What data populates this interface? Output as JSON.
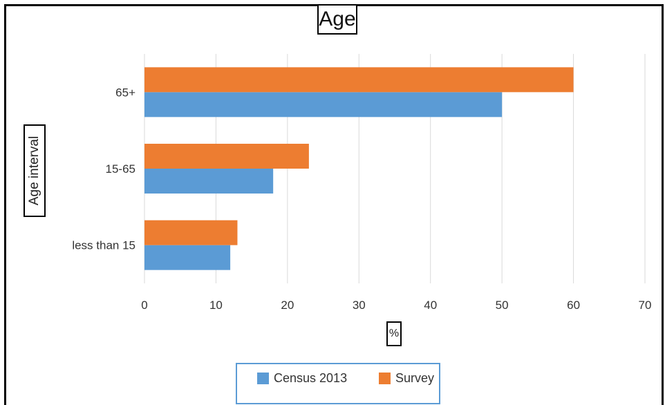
{
  "chart_data": {
    "type": "bar",
    "orientation": "horizontal",
    "title": "Age",
    "xlabel": "%",
    "ylabel": "Age interval",
    "categories": [
      "less than 15",
      "15-65",
      "65+"
    ],
    "series": [
      {
        "name": "Census 2013",
        "color": "#5b9bd5",
        "values": [
          12,
          18,
          50
        ]
      },
      {
        "name": "Survey",
        "color": "#ed7d31",
        "values": [
          13,
          23,
          60
        ]
      }
    ],
    "xlim": [
      0,
      70
    ],
    "xticks": [
      0,
      10,
      20,
      30,
      40,
      50,
      60,
      70
    ],
    "grid": true,
    "legend_position": "bottom"
  }
}
